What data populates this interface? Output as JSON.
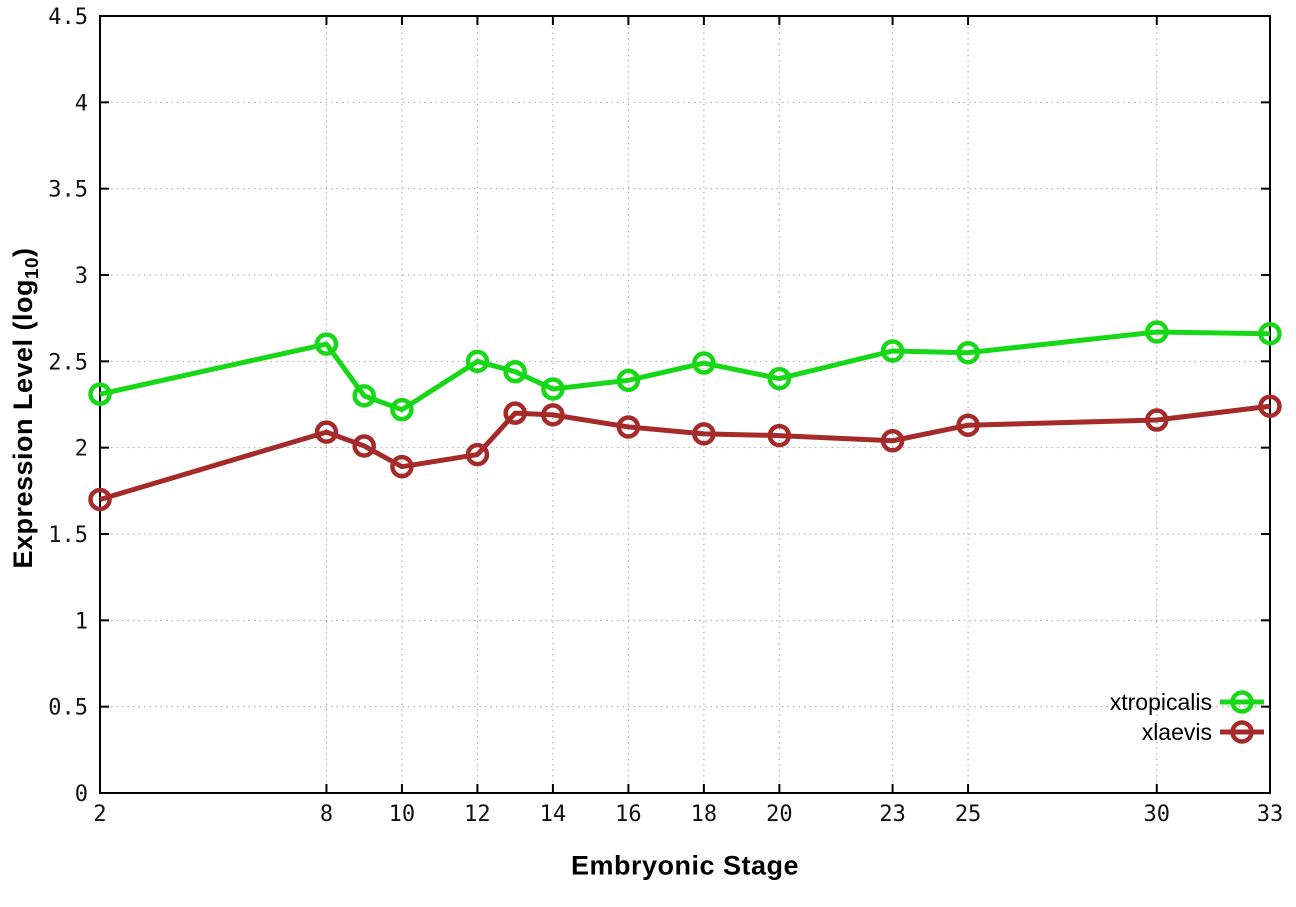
{
  "labels": {
    "xlabel": "Embryonic Stage",
    "ylabel_main": "Expression Level (log",
    "ylabel_sub": "10",
    "ylabel_close": ")"
  },
  "colors": {
    "background": "#ffffff",
    "border": "#000000",
    "grid": "#a6a6a6",
    "tick_text": "#111111",
    "legend_text": "#000000"
  },
  "chart_data": {
    "type": "line",
    "title": "",
    "xlabel": "Embryonic Stage",
    "ylabel": "Expression Level (log10)",
    "xlim": [
      2,
      33
    ],
    "ylim": [
      0,
      4.5
    ],
    "grid": true,
    "legend_position": "inside-bottom-right",
    "x_ticks": [
      2,
      8,
      10,
      12,
      14,
      16,
      18,
      20,
      23,
      25,
      30,
      33
    ],
    "x_tick_labels": [
      "2",
      "8",
      "10",
      "12",
      "14",
      "16",
      "18",
      "20",
      "23",
      "25",
      "30",
      "33"
    ],
    "y_ticks": [
      0,
      0.5,
      1,
      1.5,
      2,
      2.5,
      3,
      3.5,
      4,
      4.5
    ],
    "y_tick_labels": [
      "0",
      "0.5",
      "1",
      "1.5",
      "2",
      "2.5",
      "3",
      "3.5",
      "4",
      "4.5"
    ],
    "x": [
      2,
      8,
      9,
      10,
      12,
      13,
      14,
      16,
      18,
      20,
      23,
      25,
      30,
      33
    ],
    "series": [
      {
        "name": "xtropicalis",
        "color": "#16d816",
        "marker": "open-circle",
        "values": [
          2.31,
          2.6,
          2.3,
          2.22,
          2.5,
          2.44,
          2.34,
          2.39,
          2.49,
          2.4,
          2.56,
          2.55,
          2.67,
          2.66
        ]
      },
      {
        "name": "xlaevis",
        "color": "#a52a2a",
        "marker": "open-circle",
        "values": [
          1.7,
          2.09,
          2.01,
          1.89,
          1.96,
          2.2,
          2.19,
          2.12,
          2.08,
          2.07,
          2.04,
          2.13,
          2.16,
          2.24
        ]
      }
    ]
  }
}
